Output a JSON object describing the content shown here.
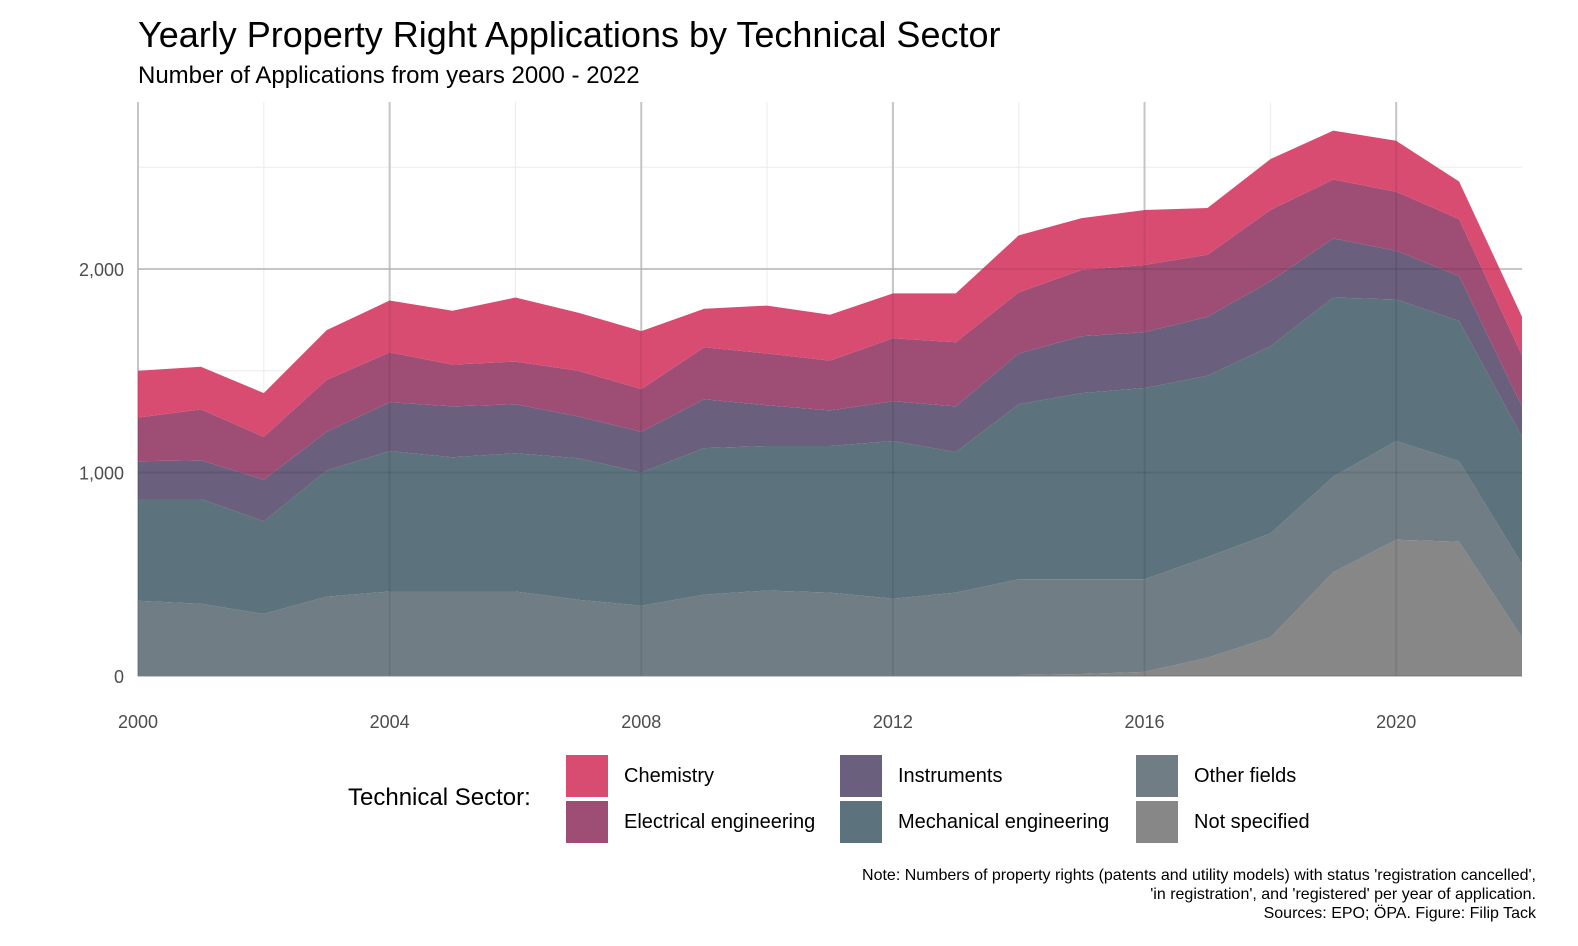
{
  "title": "Yearly Property Right Applications by Technical Sector",
  "subtitle": "Number of Applications from years 2000 - 2022",
  "note": {
    "line1": "Note: Numbers of property rights (patents and utility models) with status 'registration cancelled',",
    "line2": "'in registration', and 'registered' per year of application.",
    "line3": "Sources: EPO; ÖPA. Figure: Filip Tack"
  },
  "legend_title": "Technical Sector:",
  "chart_data": {
    "type": "area",
    "stacked": true,
    "x": [
      2000,
      2001,
      2002,
      2003,
      2004,
      2005,
      2006,
      2007,
      2008,
      2009,
      2010,
      2011,
      2012,
      2013,
      2014,
      2015,
      2016,
      2017,
      2018,
      2019,
      2020,
      2021,
      2022
    ],
    "xlim": [
      2000,
      2022
    ],
    "ylim": [
      0,
      2800
    ],
    "x_ticks": [
      2000,
      2004,
      2008,
      2012,
      2016,
      2020
    ],
    "x_tick_labels": [
      "2000",
      "2004",
      "2008",
      "2012",
      "2016",
      "2020"
    ],
    "y_ticks": [
      0,
      1000,
      2000
    ],
    "y_tick_labels": [
      "0",
      "1,000",
      "2,000"
    ],
    "grid": true,
    "legend_position": "bottom",
    "series": [
      {
        "name": "Not specified",
        "color": "#878787",
        "values": [
          5,
          5,
          5,
          5,
          5,
          5,
          5,
          5,
          5,
          5,
          5,
          5,
          5,
          5,
          5,
          10,
          20,
          90,
          190,
          510,
          670,
          660,
          190
        ]
      },
      {
        "name": "Other fields",
        "color": "#707d85",
        "values": [
          365,
          350,
          300,
          385,
          410,
          410,
          410,
          370,
          340,
          395,
          415,
          405,
          375,
          405,
          470,
          465,
          455,
          495,
          510,
          470,
          485,
          395,
          360
        ]
      },
      {
        "name": "Mechanical engineering",
        "color": "#5c727d",
        "values": [
          500,
          515,
          455,
          620,
          690,
          660,
          680,
          695,
          655,
          720,
          710,
          720,
          775,
          690,
          860,
          915,
          940,
          890,
          920,
          880,
          695,
          690,
          625
        ]
      },
      {
        "name": "Instruments",
        "color": "#6a5f7c",
        "values": [
          185,
          190,
          205,
          190,
          240,
          250,
          240,
          205,
          200,
          240,
          200,
          175,
          195,
          225,
          250,
          280,
          275,
          290,
          320,
          290,
          240,
          220,
          150
        ]
      },
      {
        "name": "Electrical engineering",
        "color": "#9e4e74",
        "values": [
          215,
          250,
          210,
          255,
          245,
          205,
          210,
          225,
          210,
          255,
          255,
          245,
          310,
          315,
          300,
          325,
          330,
          305,
          350,
          290,
          290,
          280,
          250
        ]
      },
      {
        "name": "Chemistry",
        "color": "#d94c72",
        "values": [
          230,
          210,
          215,
          245,
          255,
          265,
          315,
          285,
          285,
          190,
          235,
          225,
          220,
          240,
          280,
          255,
          270,
          230,
          250,
          240,
          250,
          185,
          190
        ]
      }
    ]
  }
}
